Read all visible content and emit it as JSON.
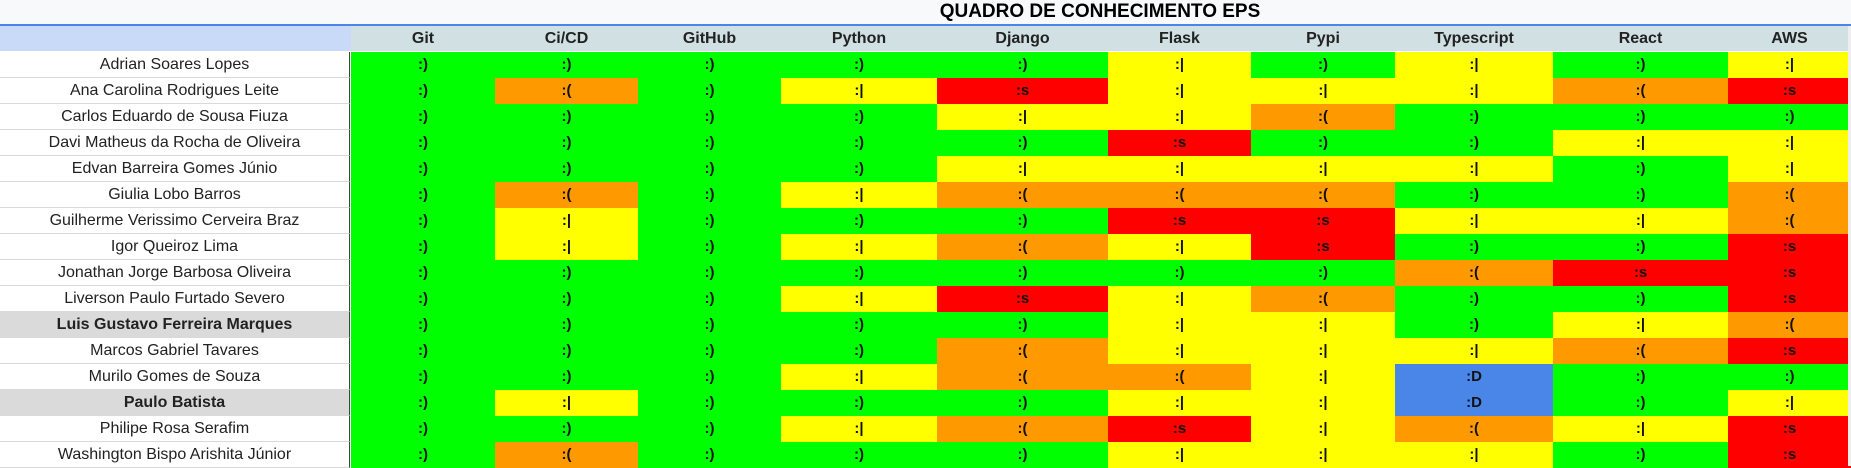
{
  "sheet": {
    "title": "QUADRO DE CONHECIMENTO EPS",
    "columns": [
      "Git",
      "Ci/CD",
      "GitHub",
      "Python",
      "Django",
      "Flask",
      "Pypi",
      "Typescript",
      "React",
      "AWS"
    ],
    "legend_colors": {
      ":)": "#00ff00",
      ":|": "#ffff00",
      ":(": "#ff9900",
      ":s": "#ff0000",
      ":D": "#4a86e8"
    },
    "rows": [
      {
        "name": "Adrian Soares Lopes",
        "bold": false,
        "values": [
          ":)",
          ":)",
          ":)",
          ":)",
          ":)",
          ":|",
          ":)",
          ":|",
          ":)",
          ":|"
        ]
      },
      {
        "name": "Ana Carolina Rodrigues Leite",
        "bold": false,
        "values": [
          ":)",
          ":(",
          ":)",
          ":|",
          ":s",
          ":|",
          ":|",
          ":|",
          ":(",
          ":s"
        ]
      },
      {
        "name": "Carlos Eduardo de Sousa Fiuza",
        "bold": false,
        "values": [
          ":)",
          ":)",
          ":)",
          ":)",
          ":|",
          ":|",
          ":(",
          ":)",
          ":)",
          ":)"
        ]
      },
      {
        "name": "Davi Matheus da Rocha de Oliveira",
        "bold": false,
        "values": [
          ":)",
          ":)",
          ":)",
          ":)",
          ":)",
          ":s",
          ":)",
          ":)",
          ":|",
          ":|"
        ]
      },
      {
        "name": "Edvan Barreira Gomes Júnio",
        "bold": false,
        "values": [
          ":)",
          ":)",
          ":)",
          ":)",
          ":|",
          ":|",
          ":|",
          ":|",
          ":)",
          ":|"
        ]
      },
      {
        "name": "Giulia Lobo Barros",
        "bold": false,
        "values": [
          ":)",
          ":(",
          ":)",
          ":|",
          ":(",
          ":(",
          ":(",
          ":)",
          ":)",
          ":("
        ]
      },
      {
        "name": "Guilherme Verissimo Cerveira Braz",
        "bold": false,
        "values": [
          ":)",
          ":|",
          ":)",
          ":)",
          ":)",
          ":s",
          ":s",
          ":|",
          ":|",
          ":("
        ]
      },
      {
        "name": "Igor Queiroz Lima",
        "bold": false,
        "values": [
          ":)",
          ":|",
          ":)",
          ":|",
          ":(",
          ":|",
          ":s",
          ":)",
          ":)",
          ":s"
        ]
      },
      {
        "name": "Jonathan Jorge Barbosa Oliveira",
        "bold": false,
        "values": [
          ":)",
          ":)",
          ":)",
          ":)",
          ":)",
          ":)",
          ":)",
          ":(",
          ":s",
          ":s"
        ]
      },
      {
        "name": "Liverson Paulo Furtado Severo",
        "bold": false,
        "values": [
          ":)",
          ":)",
          ":)",
          ":|",
          ":s",
          ":|",
          ":(",
          ":)",
          ":)",
          ":s"
        ]
      },
      {
        "name": "Luis Gustavo Ferreira Marques",
        "bold": true,
        "values": [
          ":)",
          ":)",
          ":)",
          ":)",
          ":)",
          ":|",
          ":|",
          ":)",
          ":|",
          ":("
        ]
      },
      {
        "name": "Marcos Gabriel Tavares",
        "bold": false,
        "values": [
          ":)",
          ":)",
          ":)",
          ":)",
          ":(",
          ":|",
          ":|",
          ":|",
          ":(",
          ":s"
        ]
      },
      {
        "name": "Murilo Gomes de Souza",
        "bold": false,
        "values": [
          ":)",
          ":)",
          ":)",
          ":|",
          ":(",
          ":(",
          ":|",
          ":D",
          ":)",
          ":)"
        ]
      },
      {
        "name": "Paulo Batista",
        "bold": true,
        "values": [
          ":)",
          ":|",
          ":)",
          ":)",
          ":)",
          ":|",
          ":|",
          ":D",
          ":)",
          ":|"
        ]
      },
      {
        "name": "Philipe Rosa Serafim",
        "bold": false,
        "values": [
          ":)",
          ":)",
          ":)",
          ":|",
          ":(",
          ":s",
          ":|",
          ":(",
          ":|",
          ":s"
        ]
      },
      {
        "name": "Washington Bispo Arishita Júnior",
        "bold": false,
        "values": [
          ":)",
          ":(",
          ":)",
          ":)",
          ":)",
          ":|",
          ":|",
          ":|",
          ":)",
          ":s"
        ]
      }
    ]
  }
}
